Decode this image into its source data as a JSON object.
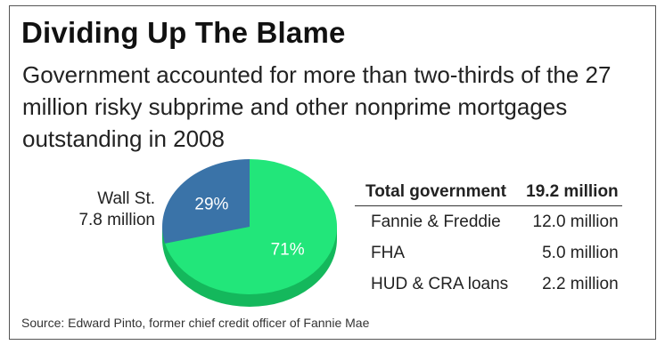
{
  "chart_data": {
    "type": "pie",
    "title": "Dividing Up The Blame",
    "subtitle": "Government accounted for more than two-thirds of the 27 million risky subprime and other nonprime mortgages outstanding in 2008",
    "slices": [
      {
        "label": "Wall St.",
        "value_label": "7.8 million",
        "percent": 29,
        "percent_label": "29%",
        "color": "#3a73a8"
      },
      {
        "label": "Total government",
        "value_label": "19.2 million",
        "percent": 71,
        "percent_label": "71%",
        "color": "#22e67a"
      }
    ],
    "table": {
      "header": {
        "label": "Total government",
        "value": "19.2 million"
      },
      "rows": [
        {
          "label": "Fannie & Freddie",
          "value": "12.0 million"
        },
        {
          "label": "FHA",
          "value": "5.0 million"
        },
        {
          "label": "HUD & CRA loans",
          "value": "2.2 million"
        }
      ]
    },
    "source": "Source: Edward Pinto, former chief credit officer of Fannie Mae"
  },
  "colors": {
    "side_green": "#14b85c",
    "side_blue": "#2a5a88"
  }
}
